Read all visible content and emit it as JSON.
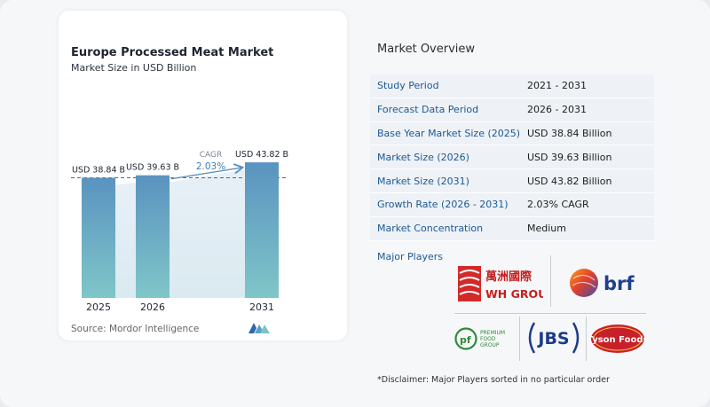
{
  "chart_data": {
    "type": "bar",
    "title": "Europe Processed Meat Market",
    "subtitle": "Market Size in USD Billion",
    "categories": [
      "2025",
      "2026",
      "2031"
    ],
    "values": [
      38.84,
      39.63,
      43.82
    ],
    "value_labels": [
      "USD 38.84 B",
      "USD 39.63 B",
      "USD 43.82 B"
    ],
    "cagr_label": "CAGR",
    "cagr_value": "2.03%",
    "ylim": [
      0,
      50
    ],
    "grid": false,
    "bar_colors": [
      "#5a93c0",
      "#5a93c0",
      "#5a93c0"
    ]
  },
  "source_text": "Source:  Mordor Intelligence",
  "overview": {
    "title": "Market Overview",
    "rows": [
      {
        "key": "Study Period",
        "value": "2021 - 2031"
      },
      {
        "key": "Forecast Data Period",
        "value": "2026 - 2031"
      },
      {
        "key": "Base Year Market Size (2025)",
        "value": "USD 38.84 Billion"
      },
      {
        "key": "Market Size (2026)",
        "value": "USD 39.63 Billion"
      },
      {
        "key": "Market Size (2031)",
        "value": "USD 43.82 Billion"
      },
      {
        "key": "Growth Rate (2026 - 2031)",
        "value": "2.03% CAGR"
      },
      {
        "key": "Market Concentration",
        "value": "Medium"
      }
    ]
  },
  "players": {
    "label": "Major Players",
    "logos": [
      {
        "name": "WH Group",
        "chinese": "萬洲國際",
        "text": "WH GROUP"
      },
      {
        "name": "BRF",
        "text": "brf"
      },
      {
        "name": "Premium Food Group",
        "lines": [
          "PREMIUM",
          "FOOD",
          "GROUP"
        ]
      },
      {
        "name": "JBS",
        "text": "JBS"
      },
      {
        "name": "Tyson Foods",
        "text": "Tyson Foods"
      }
    ]
  },
  "disclaimer": "*Disclaimer: Major Players sorted in no particular order",
  "colors": {
    "accent": "#1a5a95",
    "bar_top": "#5a93c0",
    "bar_bottom": "#7fc6c8",
    "shade": "#eef1f5"
  }
}
